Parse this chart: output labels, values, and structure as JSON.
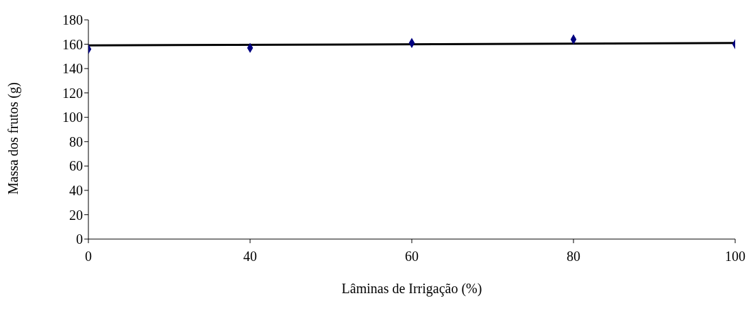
{
  "chart_data": {
    "type": "scatter",
    "xlabel": "Lâminas de Irrigação (%)",
    "ylabel": "Massa dos frutos (g)",
    "categories": [
      "0",
      "40",
      "60",
      "80",
      "100"
    ],
    "series": [
      {
        "color": "#000080",
        "values": [
          156,
          157,
          161,
          164,
          160
        ],
        "marker": "diamond"
      },
      {
        "type": "line",
        "color": "#000000",
        "x": [
          "0",
          "100"
        ],
        "values": [
          159,
          161
        ],
        "marker": "none",
        "line_style": "solid"
      }
    ],
    "ylim": [
      0,
      180
    ],
    "yticks": [
      0,
      20,
      40,
      60,
      80,
      100,
      120,
      140,
      160,
      180
    ],
    "grid": false
  }
}
